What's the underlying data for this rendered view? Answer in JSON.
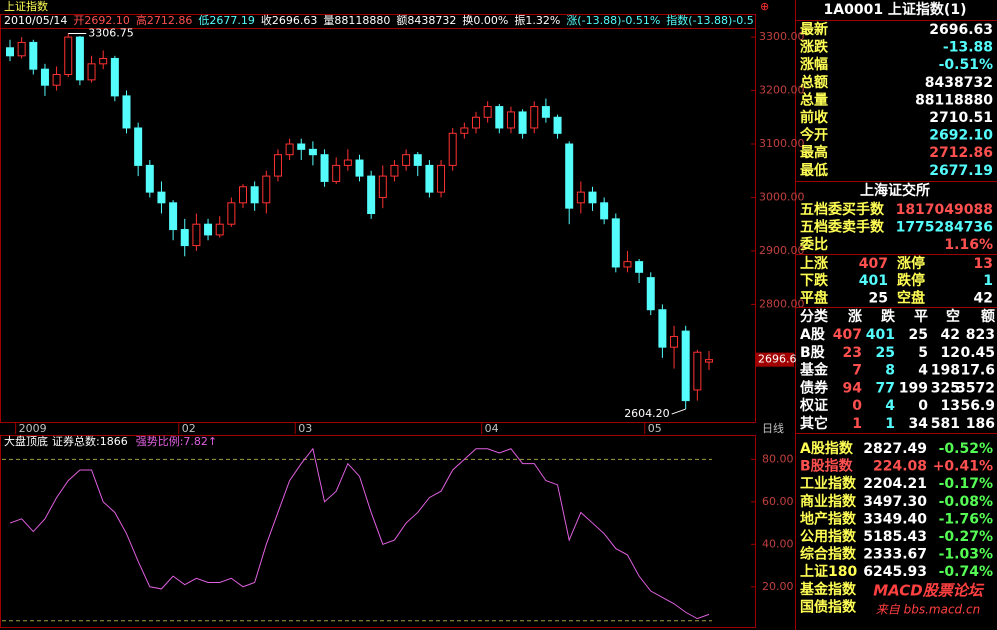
{
  "header": {
    "title": "上证指数"
  },
  "info_bar": [
    "2010/05/14",
    "开2692.10",
    "高2712.86",
    "低2677.19",
    "收2696.63",
    "量88118880",
    "额8438732",
    "换0.00%",
    "振1.32%",
    "涨(-13.88)-0.51%",
    "指数(-13.88)-0.5"
  ],
  "chart_data": [
    {
      "type": "candlestick",
      "period": "日线",
      "categories": [
        null,
        "2009",
        null,
        null,
        null,
        null,
        null,
        null,
        null,
        null,
        null,
        null,
        null,
        null,
        null,
        "02",
        null,
        null,
        null,
        null,
        null,
        null,
        null,
        null,
        null,
        "03",
        null,
        null,
        null,
        null,
        null,
        null,
        null,
        null,
        null,
        null,
        null,
        null,
        null,
        null,
        null,
        "04",
        null,
        null,
        null,
        null,
        null,
        null,
        null,
        null,
        null,
        null,
        null,
        null,
        null,
        "05",
        null,
        null,
        null,
        null,
        null
      ],
      "up_color": "#ff3232",
      "down_color": "#54fcfc",
      "series": {
        "open": [
          3280,
          3265,
          3290,
          3240,
          3210,
          3230,
          3300,
          3220,
          3250,
          3260,
          3190,
          3130,
          3060,
          3010,
          2990,
          2940,
          2910,
          2950,
          2930,
          2950,
          2990,
          3020,
          2990,
          3040,
          3080,
          3100,
          3090,
          3080,
          3030,
          3060,
          3070,
          3040,
          3000,
          3040,
          3060,
          3080,
          3060,
          3010,
          3060,
          3120,
          3130,
          3150,
          3170,
          3130,
          3160,
          3130,
          3170,
          3150,
          3100,
          2990,
          3010,
          2990,
          2960,
          2870,
          2880,
          2850,
          2790,
          2720,
          2750,
          2640,
          2692.1
        ],
        "high": [
          3295,
          3300,
          3295,
          3250,
          3245,
          3306.75,
          3302,
          3265,
          3275,
          3265,
          3200,
          3140,
          3070,
          3030,
          2995,
          2960,
          2970,
          2960,
          2965,
          3000,
          3025,
          3030,
          3050,
          3090,
          3110,
          3110,
          3105,
          3090,
          3075,
          3090,
          3080,
          3050,
          3060,
          3070,
          3090,
          3085,
          3070,
          3070,
          3130,
          3140,
          3160,
          3180,
          3175,
          3170,
          3165,
          3180,
          3185,
          3155,
          3105,
          3030,
          3020,
          3000,
          2970,
          2900,
          2885,
          2860,
          2800,
          2760,
          2760,
          2715,
          2712.86
        ],
        "low": [
          3255,
          3260,
          3230,
          3190,
          3200,
          3225,
          3210,
          3215,
          3240,
          3180,
          3120,
          3040,
          3000,
          2970,
          2920,
          2890,
          2900,
          2920,
          2925,
          2945,
          2980,
          2975,
          2970,
          3030,
          3070,
          3070,
          3060,
          3020,
          3025,
          3050,
          3030,
          2960,
          2980,
          3030,
          3050,
          3040,
          3000,
          3000,
          3050,
          3110,
          3120,
          3140,
          3120,
          3120,
          3110,
          3120,
          3140,
          3110,
          2950,
          2970,
          2975,
          2950,
          2860,
          2860,
          2840,
          2780,
          2700,
          2680,
          2604.2,
          2620,
          2677.19
        ],
        "close": [
          3265,
          3290,
          3240,
          3210,
          3230,
          3300,
          3220,
          3250,
          3260,
          3190,
          3130,
          3060,
          3010,
          2990,
          2940,
          2910,
          2950,
          2930,
          2950,
          2990,
          3020,
          2990,
          3040,
          3080,
          3100,
          3090,
          3080,
          3030,
          3060,
          3070,
          3040,
          2970,
          3040,
          3060,
          3080,
          3060,
          3010,
          3060,
          3120,
          3130,
          3150,
          3170,
          3130,
          3160,
          3120,
          3170,
          3150,
          3120,
          2980,
          3010,
          2990,
          2960,
          2870,
          2880,
          2860,
          2790,
          2720,
          2740,
          2620,
          2710.51,
          2696.63
        ]
      },
      "ylim": [
        2580,
        3317
      ],
      "yticks": [
        {
          "value": 2800,
          "label": "2800.00"
        },
        {
          "value": 2900,
          "label": "2900.00"
        },
        {
          "value": 3000,
          "label": "3000.00"
        },
        {
          "value": 3100,
          "label": "3100.00"
        },
        {
          "value": 3200,
          "label": "3200.00"
        },
        {
          "value": 3300,
          "label": "3300.00"
        }
      ],
      "annotations": [
        {
          "value": 3306.75,
          "label": "3306.75"
        },
        {
          "value": 2604.2,
          "label": "2604.20"
        },
        {
          "value": 2696.63,
          "label": "2696.6"
        }
      ]
    },
    {
      "type": "line",
      "title": "大盘顶底",
      "subtitles": [
        "证券总数:1866",
        "强势比例:7.82↑"
      ],
      "series": [
        {
          "color": "#e060e0",
          "values": [
            50,
            52,
            46,
            52,
            62,
            70,
            75,
            75,
            60,
            55,
            45,
            32,
            20,
            19,
            25,
            21,
            24,
            22,
            22,
            24,
            20,
            22,
            40,
            55,
            70,
            78,
            85,
            60,
            65,
            78,
            72,
            55,
            40,
            42,
            50,
            55,
            62,
            65,
            75,
            80,
            85,
            85,
            83,
            85,
            78,
            78,
            70,
            68,
            42,
            55,
            50,
            45,
            38,
            35,
            25,
            18,
            15,
            12,
            8,
            5,
            7
          ]
        }
      ],
      "ylim": [
        2,
        91
      ],
      "yticks": [
        {
          "value": 20,
          "label": "20.00"
        },
        {
          "value": 40,
          "label": "40.00"
        },
        {
          "value": 60,
          "label": "60.00"
        },
        {
          "value": 80,
          "label": "80.00"
        }
      ],
      "ref_lines": [
        80,
        4
      ]
    }
  ],
  "side_panel": {
    "title": "1A0001 上证指数(1)",
    "quote": [
      [
        "最新",
        "2696.63"
      ],
      [
        "涨跌",
        "-13.88"
      ],
      [
        "涨幅",
        "-0.51%"
      ],
      [
        "总额",
        "8438732"
      ],
      [
        "总量",
        "88118880"
      ],
      [
        "前收",
        "2710.51"
      ],
      [
        "今开",
        "2692.10"
      ],
      [
        "最高",
        "2712.86"
      ],
      [
        "最低",
        "2677.19"
      ]
    ],
    "exchange": "上海证交所",
    "orders": [
      [
        "五档委买手数",
        "1817049088"
      ],
      [
        "五档委卖手数",
        "1775284736"
      ],
      [
        "委比",
        "1.16%"
      ]
    ],
    "breadth": [
      [
        "上涨",
        "407",
        "涨停",
        "13"
      ],
      [
        "下跌",
        "401",
        "跌停",
        "1"
      ],
      [
        "平盘",
        "25",
        "空盘",
        "42"
      ]
    ],
    "table": {
      "header": [
        "分类",
        "涨",
        "跌",
        "平",
        "空",
        "额"
      ],
      "rows": [
        [
          "A股",
          "407",
          "401",
          "25",
          "42",
          "823"
        ],
        [
          "B股",
          "23",
          "25",
          "5",
          "12",
          "0.45"
        ],
        [
          "基金",
          "7",
          "8",
          "4",
          "198",
          "17.6"
        ],
        [
          "债券",
          "94",
          "77",
          "199",
          "325",
          "3572"
        ],
        [
          "权证",
          "0",
          "4",
          "0",
          "13",
          "56.9"
        ],
        [
          "其它",
          "1",
          "1",
          "34",
          "581",
          "186"
        ]
      ]
    },
    "indices": [
      [
        "A股指数",
        "2827.49",
        "-0.52%"
      ],
      [
        "B股指数",
        "224.08",
        "+0.41%"
      ],
      [
        "工业指数",
        "2204.21",
        "-0.17%"
      ],
      [
        "商业指数",
        "3497.30",
        "-0.08%"
      ],
      [
        "地产指数",
        "3349.40",
        "-1.76%"
      ],
      [
        "公用指数",
        "5185.43",
        "-0.27%"
      ],
      [
        "综合指数",
        "2333.67",
        "-1.03%"
      ],
      [
        "上证180",
        "6245.93",
        "-0.74%"
      ],
      [
        "基金指数"
      ],
      [
        "国债指数"
      ]
    ],
    "watermark": [
      "MACD股票论坛",
      "来自 bbs.macd.cn"
    ]
  }
}
